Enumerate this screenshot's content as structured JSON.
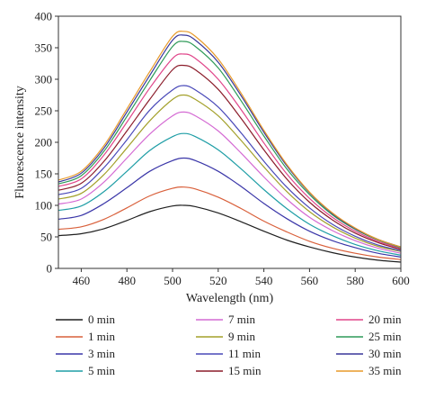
{
  "chart_data": {
    "type": "line",
    "title": "",
    "xlabel": "Wavelength (nm)",
    "ylabel": "Fluorescence intensity",
    "xlim": [
      450,
      600
    ],
    "ylim": [
      0,
      400
    ],
    "x_ticks": [
      "460",
      "480",
      "500",
      "520",
      "540",
      "560",
      "580",
      "600"
    ],
    "y_ticks": [
      "0",
      "50",
      "100",
      "150",
      "200",
      "250",
      "300",
      "350",
      "400"
    ],
    "grid": false,
    "legend_position": "bottom",
    "x": [
      450,
      460,
      470,
      480,
      490,
      500,
      505,
      510,
      520,
      530,
      540,
      550,
      560,
      570,
      580,
      590,
      600
    ],
    "series": [
      {
        "name": "0 min",
        "color": "#1f1f1f",
        "values": [
          52,
          55,
          63,
          76,
          90,
          99,
          100,
          98,
          88,
          74,
          59,
          45,
          34,
          25,
          18,
          13,
          10
        ]
      },
      {
        "name": "1 min",
        "color": "#d9603b",
        "values": [
          62,
          66,
          78,
          96,
          115,
          127,
          129,
          126,
          113,
          95,
          75,
          58,
          43,
          32,
          24,
          18,
          14
        ]
      },
      {
        "name": "3 min",
        "color": "#3a36a8",
        "values": [
          78,
          84,
          103,
          128,
          154,
          171,
          175,
          171,
          154,
          130,
          103,
          79,
          59,
          44,
          33,
          24,
          18
        ]
      },
      {
        "name": "5 min",
        "color": "#1f9ea6",
        "values": [
          92,
          99,
          122,
          154,
          187,
          209,
          214,
          209,
          188,
          158,
          125,
          95,
          70,
          52,
          38,
          28,
          21
        ]
      },
      {
        "name": "7 min",
        "color": "#d46ad3",
        "values": [
          102,
          110,
          137,
          175,
          213,
          242,
          248,
          242,
          218,
          183,
          145,
          110,
          81,
          60,
          44,
          32,
          24
        ]
      },
      {
        "name": "9 min",
        "color": "#a3a02a",
        "values": [
          110,
          119,
          149,
          191,
          234,
          268,
          275,
          268,
          242,
          203,
          161,
          122,
          90,
          66,
          48,
          35,
          27
        ]
      },
      {
        "name": "11 min",
        "color": "#4848b8",
        "values": [
          117,
          127,
          160,
          204,
          251,
          283,
          290,
          283,
          256,
          215,
          170,
          129,
          96,
          70,
          51,
          37,
          28
        ]
      },
      {
        "name": "15 min",
        "color": "#8b1c2a",
        "values": [
          124,
          135,
          170,
          218,
          268,
          315,
          322,
          315,
          284,
          238,
          188,
          142,
          105,
          77,
          56,
          41,
          30
        ]
      },
      {
        "name": "20 min",
        "color": "#e0458a",
        "values": [
          130,
          142,
          180,
          232,
          286,
          333,
          340,
          333,
          300,
          252,
          199,
          150,
          111,
          81,
          59,
          43,
          32
        ]
      },
      {
        "name": "25 min",
        "color": "#2e9a58",
        "values": [
          134,
          147,
          186,
          241,
          298,
          352,
          360,
          352,
          318,
          266,
          210,
          158,
          117,
          85,
          62,
          45,
          33
        ]
      },
      {
        "name": "30 min",
        "color": "#38379a",
        "values": [
          137,
          151,
          191,
          248,
          306,
          362,
          370,
          362,
          327,
          274,
          216,
          163,
          120,
          87,
          63,
          46,
          34
        ]
      },
      {
        "name": "35 min",
        "color": "#e89a2a",
        "values": [
          140,
          154,
          195,
          253,
          312,
          368,
          376,
          368,
          332,
          278,
          219,
          165,
          121,
          88,
          64,
          46,
          34
        ]
      }
    ]
  }
}
